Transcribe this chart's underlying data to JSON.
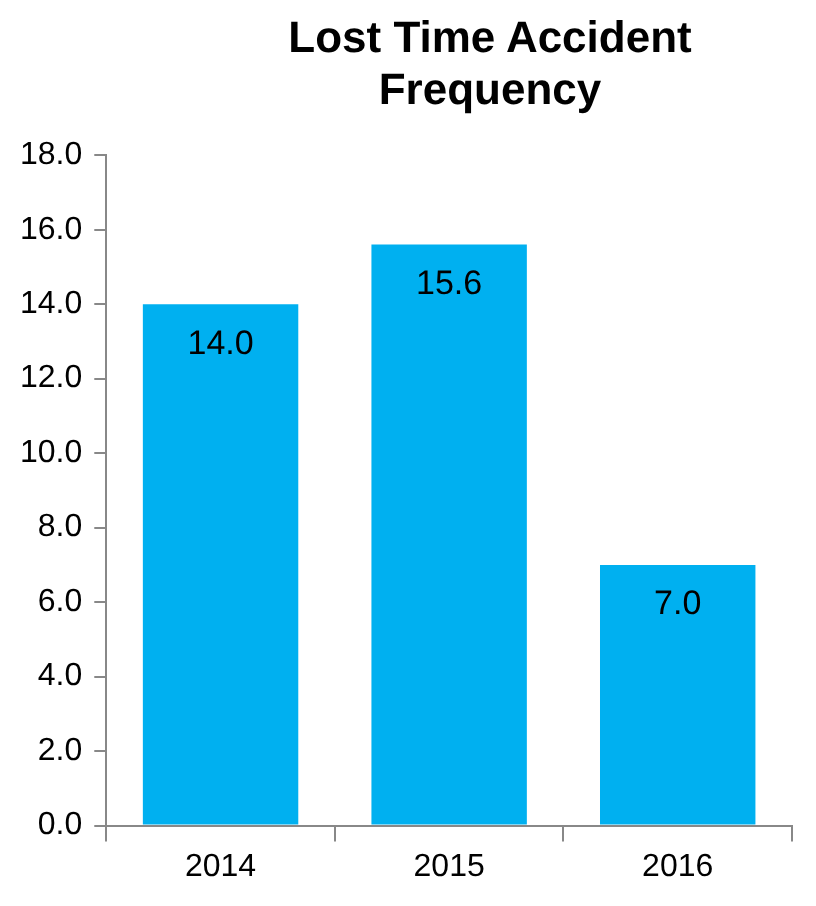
{
  "chart_data": {
    "type": "bar",
    "title": "Lost Time Accident Frequency",
    "categories": [
      "2014",
      "2015",
      "2016"
    ],
    "values": [
      14.0,
      15.6,
      7.0
    ],
    "color": "#00b0f0",
    "ylim": [
      0,
      18
    ],
    "yticks": [
      {
        "value": 0,
        "label": "0.0"
      },
      {
        "value": 2,
        "label": "2.0"
      },
      {
        "value": 4,
        "label": "4.0"
      },
      {
        "value": 6,
        "label": "6.0"
      },
      {
        "value": 8,
        "label": "8.0"
      },
      {
        "value": 10,
        "label": "10.0"
      },
      {
        "value": 12,
        "label": "12.0"
      },
      {
        "value": 14,
        "label": "14.0"
      },
      {
        "value": 16,
        "label": "16.0"
      },
      {
        "value": 18,
        "label": "18.0"
      }
    ],
    "value_labels": [
      "14.0",
      "15.6",
      "7.0"
    ],
    "grid": false,
    "legend": false
  }
}
